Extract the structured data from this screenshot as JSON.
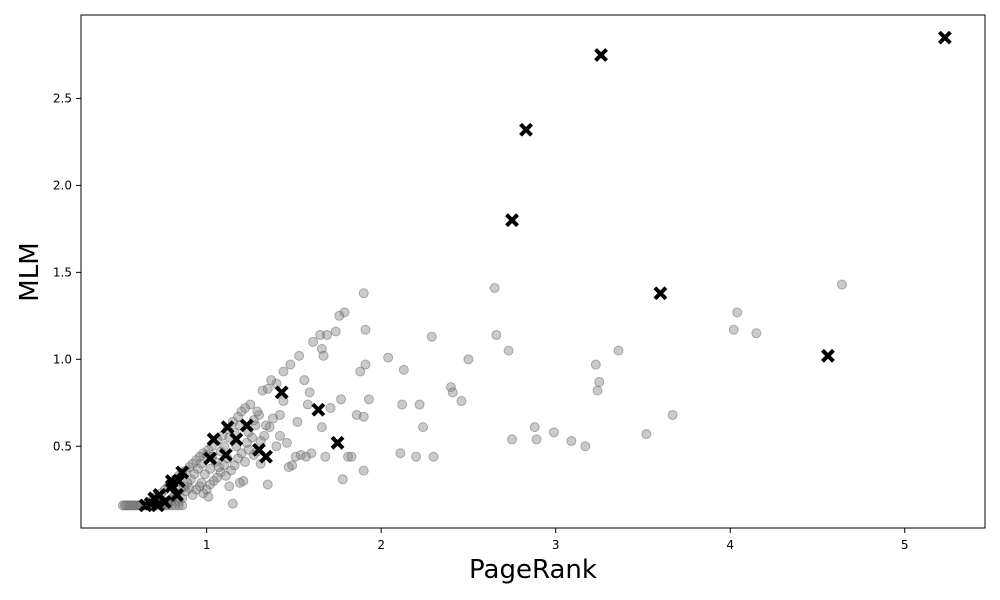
{
  "chart_data": {
    "type": "scatter",
    "title": "",
    "xlabel": "PageRank",
    "ylabel": "MLM",
    "xlim": [
      0.28,
      5.46
    ],
    "ylim": [
      0.03,
      2.98
    ],
    "xticks": [
      1,
      2,
      3,
      4,
      5
    ],
    "xtick_labels": [
      "1",
      "2",
      "3",
      "4",
      "5"
    ],
    "yticks": [
      0.5,
      1.0,
      1.5,
      2.0,
      2.5
    ],
    "ytick_labels": [
      "0.5",
      "1.0",
      "1.5",
      "2.0",
      "2.5"
    ],
    "grid": false,
    "legend": "none",
    "series": [
      {
        "marker": "circle",
        "color": "#808080",
        "points": [
          [
            1.48,
            0.97
          ],
          [
            1.53,
            1.02
          ],
          [
            1.61,
            1.1
          ],
          [
            1.65,
            1.14
          ],
          [
            1.69,
            1.14
          ],
          [
            1.74,
            1.16
          ],
          [
            1.79,
            1.27
          ],
          [
            1.76,
            1.25
          ],
          [
            1.9,
            1.38
          ],
          [
            1.66,
            1.06
          ],
          [
            1.67,
            1.02
          ],
          [
            1.91,
            1.17
          ],
          [
            1.91,
            0.97
          ],
          [
            1.88,
            0.93
          ],
          [
            1.93,
            0.77
          ],
          [
            2.04,
            1.01
          ],
          [
            2.13,
            0.94
          ],
          [
            2.29,
            1.13
          ],
          [
            2.4,
            0.84
          ],
          [
            2.41,
            0.81
          ],
          [
            2.46,
            0.76
          ],
          [
            2.5,
            1.0
          ],
          [
            2.65,
            1.41
          ],
          [
            2.66,
            1.14
          ],
          [
            2.73,
            1.05
          ],
          [
            2.75,
            0.54
          ],
          [
            2.88,
            0.61
          ],
          [
            2.89,
            0.54
          ],
          [
            2.99,
            0.58
          ],
          [
            3.09,
            0.53
          ],
          [
            3.17,
            0.5
          ],
          [
            3.23,
            0.97
          ],
          [
            3.24,
            0.82
          ],
          [
            3.25,
            0.87
          ],
          [
            3.36,
            1.05
          ],
          [
            3.52,
            0.57
          ],
          [
            3.67,
            0.68
          ],
          [
            4.02,
            1.17
          ],
          [
            4.04,
            1.27
          ],
          [
            4.15,
            1.15
          ],
          [
            4.64,
            1.43
          ],
          [
            2.12,
            0.74
          ],
          [
            2.22,
            0.74
          ],
          [
            2.24,
            0.61
          ],
          [
            2.11,
            0.46
          ],
          [
            2.2,
            0.44
          ],
          [
            2.3,
            0.44
          ],
          [
            1.86,
            0.68
          ],
          [
            1.9,
            0.67
          ],
          [
            1.77,
            0.77
          ],
          [
            1.71,
            0.72
          ],
          [
            1.66,
            0.61
          ],
          [
            1.58,
            0.74
          ],
          [
            1.59,
            0.81
          ],
          [
            1.56,
            0.88
          ],
          [
            1.52,
            0.64
          ],
          [
            1.46,
            0.52
          ],
          [
            1.44,
            0.76
          ],
          [
            1.42,
            0.68
          ],
          [
            1.38,
            0.66
          ],
          [
            1.35,
            0.83
          ],
          [
            1.32,
            0.82
          ],
          [
            1.4,
            0.86
          ],
          [
            1.3,
            0.68
          ],
          [
            1.28,
            0.62
          ],
          [
            1.25,
            0.74
          ],
          [
            1.22,
            0.72
          ],
          [
            1.2,
            0.7
          ],
          [
            1.18,
            0.67
          ],
          [
            1.15,
            0.64
          ],
          [
            1.12,
            0.6
          ],
          [
            1.09,
            0.56
          ],
          [
            1.06,
            0.54
          ],
          [
            1.03,
            0.5
          ],
          [
            1.01,
            0.48
          ],
          [
            0.98,
            0.46
          ],
          [
            0.96,
            0.44
          ],
          [
            0.94,
            0.42
          ],
          [
            0.92,
            0.4
          ],
          [
            0.9,
            0.38
          ],
          [
            0.88,
            0.36
          ],
          [
            0.86,
            0.35
          ],
          [
            0.84,
            0.33
          ],
          [
            0.82,
            0.31
          ],
          [
            0.8,
            0.29
          ],
          [
            0.78,
            0.27
          ],
          [
            0.76,
            0.25
          ],
          [
            0.74,
            0.23
          ],
          [
            0.72,
            0.21
          ],
          [
            0.7,
            0.2
          ],
          [
            0.68,
            0.18
          ],
          [
            0.66,
            0.17
          ],
          [
            0.64,
            0.16
          ],
          [
            1.54,
            0.45
          ],
          [
            1.57,
            0.44
          ],
          [
            1.6,
            0.46
          ],
          [
            1.68,
            0.44
          ],
          [
            1.78,
            0.31
          ],
          [
            1.81,
            0.44
          ],
          [
            1.83,
            0.44
          ],
          [
            1.9,
            0.36
          ],
          [
            1.49,
            0.39
          ],
          [
            1.47,
            0.38
          ],
          [
            1.51,
            0.44
          ],
          [
            1.42,
            0.56
          ],
          [
            1.4,
            0.5
          ],
          [
            1.36,
            0.61
          ],
          [
            1.34,
            0.62
          ],
          [
            1.33,
            0.56
          ],
          [
            1.31,
            0.53
          ],
          [
            1.29,
            0.47
          ],
          [
            1.27,
            0.45
          ],
          [
            1.24,
            0.48
          ],
          [
            1.22,
            0.41
          ],
          [
            1.2,
            0.46
          ],
          [
            1.18,
            0.43
          ],
          [
            1.16,
            0.39
          ],
          [
            1.14,
            0.36
          ],
          [
            1.12,
            0.43
          ],
          [
            1.1,
            0.39
          ],
          [
            1.08,
            0.35
          ],
          [
            1.06,
            0.32
          ],
          [
            1.04,
            0.3
          ],
          [
            1.02,
            0.28
          ],
          [
            1.0,
            0.25
          ],
          [
            0.98,
            0.23
          ],
          [
            0.96,
            0.27
          ],
          [
            0.94,
            0.25
          ],
          [
            0.92,
            0.22
          ],
          [
            0.9,
            0.26
          ],
          [
            0.88,
            0.24
          ],
          [
            0.86,
            0.2
          ],
          [
            0.84,
            0.18
          ],
          [
            0.82,
            0.22
          ],
          [
            0.8,
            0.19
          ],
          [
            0.78,
            0.17
          ],
          [
            0.76,
            0.16
          ],
          [
            0.74,
            0.16
          ],
          [
            0.72,
            0.16
          ],
          [
            0.7,
            0.16
          ],
          [
            0.68,
            0.16
          ],
          [
            0.66,
            0.16
          ],
          [
            0.63,
            0.16
          ],
          [
            0.61,
            0.16
          ],
          [
            0.59,
            0.16
          ],
          [
            0.57,
            0.16
          ],
          [
            0.55,
            0.16
          ],
          [
            0.53,
            0.16
          ],
          [
            0.52,
            0.16
          ],
          [
            0.54,
            0.16
          ],
          [
            0.56,
            0.16
          ],
          [
            0.58,
            0.16
          ],
          [
            0.6,
            0.16
          ],
          [
            0.62,
            0.16
          ],
          [
            0.65,
            0.16
          ],
          [
            0.67,
            0.16
          ],
          [
            1.15,
            0.17
          ],
          [
            1.21,
            0.3
          ],
          [
            1.19,
            0.29
          ],
          [
            1.13,
            0.27
          ],
          [
            1.11,
            0.33
          ],
          [
            1.07,
            0.38
          ],
          [
            1.05,
            0.41
          ],
          [
            1.03,
            0.44
          ],
          [
            1.0,
            0.45
          ],
          [
            0.97,
            0.4
          ],
          [
            0.95,
            0.37
          ],
          [
            0.93,
            0.34
          ],
          [
            0.91,
            0.31
          ],
          [
            0.89,
            0.29
          ],
          [
            0.87,
            0.27
          ],
          [
            0.85,
            0.25
          ],
          [
            0.83,
            0.23
          ],
          [
            0.81,
            0.21
          ],
          [
            0.79,
            0.19
          ],
          [
            0.77,
            0.18
          ],
          [
            0.75,
            0.17
          ],
          [
            0.73,
            0.19
          ],
          [
            0.71,
            0.21
          ],
          [
            0.69,
            0.17
          ],
          [
            0.86,
            0.16
          ],
          [
            0.84,
            0.16
          ],
          [
            0.82,
            0.16
          ],
          [
            0.8,
            0.16
          ],
          [
            0.78,
            0.16
          ],
          [
            1.35,
            0.28
          ],
          [
            1.31,
            0.4
          ],
          [
            1.26,
            0.55
          ],
          [
            1.23,
            0.52
          ],
          [
            1.17,
            0.5
          ],
          [
            1.44,
            0.93
          ],
          [
            1.37,
            0.88
          ],
          [
            1.01,
            0.21
          ],
          [
            0.97,
            0.29
          ],
          [
            0.99,
            0.34
          ],
          [
            1.02,
            0.37
          ],
          [
            1.08,
            0.47
          ],
          [
            1.1,
            0.5
          ],
          [
            1.13,
            0.55
          ],
          [
            1.16,
            0.58
          ],
          [
            1.19,
            0.62
          ],
          [
            1.24,
            0.58
          ],
          [
            1.27,
            0.65
          ],
          [
            1.29,
            0.7
          ]
        ]
      },
      {
        "marker": "x",
        "color": "#000000",
        "points": [
          [
            5.23,
            2.85
          ],
          [
            3.26,
            2.75
          ],
          [
            2.83,
            2.32
          ],
          [
            2.75,
            1.8
          ],
          [
            3.6,
            1.38
          ],
          [
            4.56,
            1.02
          ],
          [
            1.43,
            0.81
          ],
          [
            1.64,
            0.71
          ],
          [
            1.23,
            0.62
          ],
          [
            1.12,
            0.61
          ],
          [
            1.04,
            0.54
          ],
          [
            1.17,
            0.54
          ],
          [
            1.75,
            0.52
          ],
          [
            1.3,
            0.48
          ],
          [
            1.34,
            0.44
          ],
          [
            1.11,
            0.45
          ],
          [
            1.02,
            0.43
          ],
          [
            0.86,
            0.35
          ],
          [
            0.8,
            0.3
          ],
          [
            0.84,
            0.3
          ],
          [
            0.8,
            0.27
          ],
          [
            0.83,
            0.22
          ],
          [
            0.73,
            0.22
          ],
          [
            0.7,
            0.2
          ],
          [
            0.76,
            0.18
          ],
          [
            0.68,
            0.17
          ],
          [
            0.65,
            0.16
          ],
          [
            0.72,
            0.16
          ]
        ]
      }
    ]
  }
}
